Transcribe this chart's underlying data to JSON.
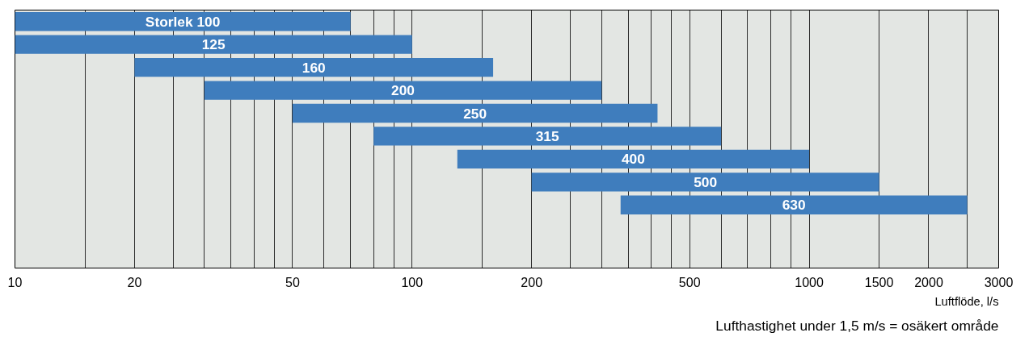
{
  "chart_data": {
    "type": "bar",
    "orientation": "horizontal",
    "log": "x",
    "categories": [
      "Storlek 100",
      "125",
      "160",
      "200",
      "250",
      "315",
      "400",
      "500",
      "630"
    ],
    "base": [
      10,
      10,
      20,
      30,
      50,
      80,
      130,
      200,
      335
    ],
    "values": [
      60,
      90,
      140,
      270,
      365,
      520,
      870,
      1300,
      2165
    ],
    "color": "#3f7dbd",
    "xlim": [
      10,
      3000
    ],
    "xticks": [
      10,
      {
        "value": 15,
        "label": null
      },
      20,
      {
        "value": 25,
        "label": null
      },
      {
        "value": 30,
        "label": null
      },
      {
        "value": 35,
        "label": null
      },
      {
        "value": 40,
        "label": null
      },
      {
        "value": 45,
        "label": null
      },
      50,
      {
        "value": 60,
        "label": null
      },
      {
        "value": 70,
        "label": null
      },
      {
        "value": 80,
        "label": null
      },
      {
        "value": 90,
        "label": null
      },
      100,
      {
        "value": 150,
        "label": null
      },
      200,
      {
        "value": 250,
        "label": null
      },
      {
        "value": 300,
        "label": null
      },
      {
        "value": 350,
        "label": null
      },
      {
        "value": 400,
        "label": null
      },
      {
        "value": 450,
        "label": null
      },
      500,
      {
        "value": 600,
        "label": null
      },
      {
        "value": 700,
        "label": null
      },
      {
        "value": 800,
        "label": null
      },
      {
        "value": 900,
        "label": null
      },
      1000,
      1500,
      2000,
      {
        "value": 2500,
        "label": null
      },
      3000
    ],
    "grid": "x",
    "tick_labels": "x",
    "xlabel": "Luftflöde, l/s",
    "annotations": [
      "Lufthastighet under 1,5 m/s = osäkert område"
    ]
  }
}
